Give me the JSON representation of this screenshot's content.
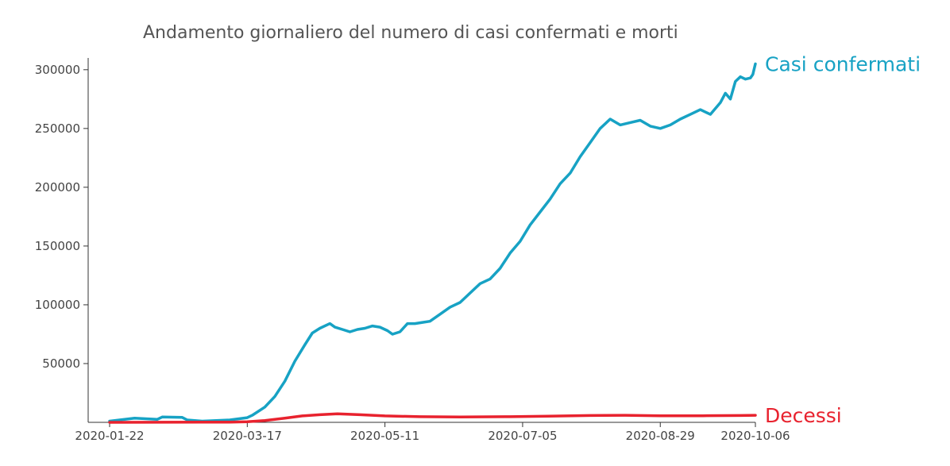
{
  "chart_data": {
    "type": "line",
    "title": "Andamento giornaliero del numero di casi confermati e morti",
    "xlabel": "",
    "ylabel": "",
    "x_range": [
      "2020-01-22",
      "2020-10-06"
    ],
    "ylim": [
      0,
      310000
    ],
    "x_tick_labels": [
      "2020-01-22",
      "2020-03-17",
      "2020-05-11",
      "2020-07-05",
      "2020-08-29",
      "2020-10-06"
    ],
    "y_tick_labels": [
      "50000",
      "100000",
      "150000",
      "200000",
      "250000",
      "300000"
    ],
    "grid": false,
    "legend": "none",
    "series": [
      {
        "name": "Casi confermati",
        "color": "#17a2c4",
        "points": [
          [
            "2020-01-22",
            1000
          ],
          [
            "2020-02-01",
            3500
          ],
          [
            "2020-02-10",
            2500
          ],
          [
            "2020-02-12",
            4500
          ],
          [
            "2020-02-20",
            4200
          ],
          [
            "2020-02-22",
            2000
          ],
          [
            "2020-02-28",
            1000
          ],
          [
            "2020-03-10",
            2000
          ],
          [
            "2020-03-17",
            4000
          ],
          [
            "2020-03-19",
            6000
          ],
          [
            "2020-03-24",
            13000
          ],
          [
            "2020-03-28",
            22000
          ],
          [
            "2020-04-01",
            35000
          ],
          [
            "2020-04-05",
            52000
          ],
          [
            "2020-04-09",
            66000
          ],
          [
            "2020-04-12",
            76000
          ],
          [
            "2020-04-15",
            80000
          ],
          [
            "2020-04-19",
            84000
          ],
          [
            "2020-04-21",
            81000
          ],
          [
            "2020-04-24",
            79000
          ],
          [
            "2020-04-27",
            77000
          ],
          [
            "2020-04-30",
            79000
          ],
          [
            "2020-05-03",
            80000
          ],
          [
            "2020-05-06",
            82000
          ],
          [
            "2020-05-09",
            81000
          ],
          [
            "2020-05-12",
            78000
          ],
          [
            "2020-05-14",
            75000
          ],
          [
            "2020-05-17",
            77000
          ],
          [
            "2020-05-20",
            84000
          ],
          [
            "2020-05-23",
            84000
          ],
          [
            "2020-05-26",
            85000
          ],
          [
            "2020-05-29",
            86000
          ],
          [
            "2020-06-02",
            92000
          ],
          [
            "2020-06-06",
            98000
          ],
          [
            "2020-06-10",
            102000
          ],
          [
            "2020-06-14",
            110000
          ],
          [
            "2020-06-18",
            118000
          ],
          [
            "2020-06-22",
            122000
          ],
          [
            "2020-06-26",
            131000
          ],
          [
            "2020-06-30",
            144000
          ],
          [
            "2020-07-04",
            154000
          ],
          [
            "2020-07-08",
            168000
          ],
          [
            "2020-07-12",
            179000
          ],
          [
            "2020-07-16",
            190000
          ],
          [
            "2020-07-20",
            203000
          ],
          [
            "2020-07-24",
            212000
          ],
          [
            "2020-07-28",
            226000
          ],
          [
            "2020-08-01",
            238000
          ],
          [
            "2020-08-05",
            250000
          ],
          [
            "2020-08-09",
            258000
          ],
          [
            "2020-08-13",
            253000
          ],
          [
            "2020-08-17",
            255000
          ],
          [
            "2020-08-21",
            257000
          ],
          [
            "2020-08-25",
            252000
          ],
          [
            "2020-08-29",
            250000
          ],
          [
            "2020-09-02",
            253000
          ],
          [
            "2020-09-06",
            258000
          ],
          [
            "2020-09-10",
            262000
          ],
          [
            "2020-09-14",
            266000
          ],
          [
            "2020-09-18",
            262000
          ],
          [
            "2020-09-22",
            272000
          ],
          [
            "2020-09-24",
            280000
          ],
          [
            "2020-09-26",
            275000
          ],
          [
            "2020-09-28",
            290000
          ],
          [
            "2020-09-30",
            294000
          ],
          [
            "2020-10-02",
            292000
          ],
          [
            "2020-10-04",
            293000
          ],
          [
            "2020-10-05",
            296000
          ],
          [
            "2020-10-06",
            305000
          ]
        ]
      },
      {
        "name": "Decessi",
        "color": "#e8222e",
        "points": [
          [
            "2020-01-22",
            0
          ],
          [
            "2020-03-10",
            200
          ],
          [
            "2020-03-17",
            500
          ],
          [
            "2020-03-24",
            1500
          ],
          [
            "2020-04-01",
            3500
          ],
          [
            "2020-04-08",
            5500
          ],
          [
            "2020-04-15",
            6500
          ],
          [
            "2020-04-22",
            7300
          ],
          [
            "2020-05-01",
            6500
          ],
          [
            "2020-05-11",
            5500
          ],
          [
            "2020-05-25",
            4800
          ],
          [
            "2020-06-10",
            4600
          ],
          [
            "2020-06-30",
            4800
          ],
          [
            "2020-07-15",
            5200
          ],
          [
            "2020-08-01",
            5800
          ],
          [
            "2020-08-15",
            6000
          ],
          [
            "2020-08-29",
            5600
          ],
          [
            "2020-09-15",
            5600
          ],
          [
            "2020-09-30",
            5800
          ],
          [
            "2020-10-06",
            6000
          ]
        ]
      }
    ]
  }
}
